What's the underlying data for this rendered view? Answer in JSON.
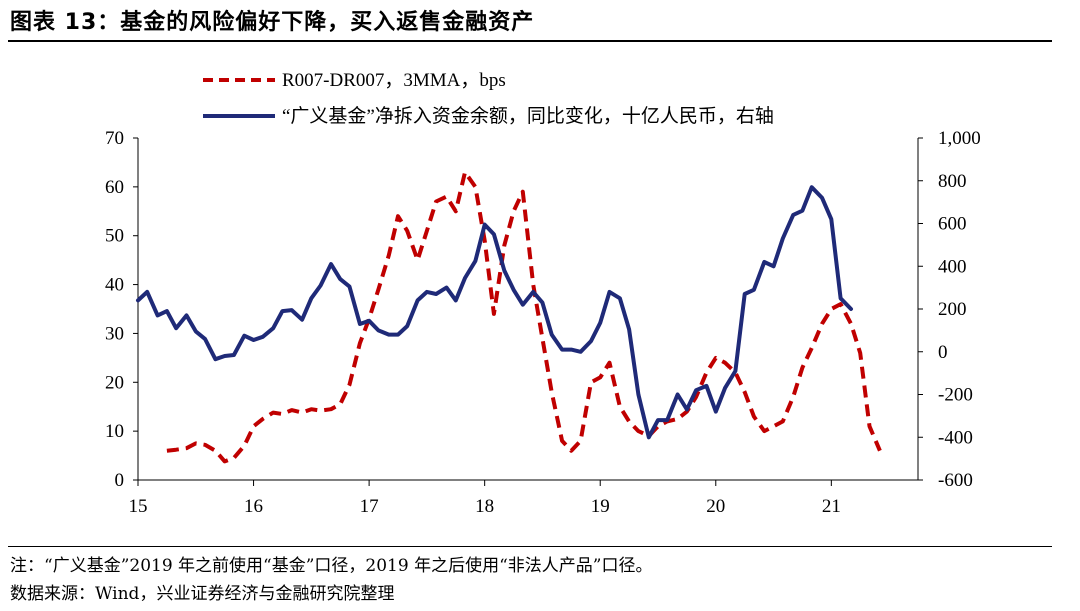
{
  "title": "图表 13：基金的风险偏好下降，买入返售金融资产",
  "footnote": "注：“广义基金”2019 年之前使用“基金”口径，2019 年之后使用“非法人产品”口径。",
  "source": "数据来源：Wind，兴业证券经济与金融研究院整理",
  "colors": {
    "red_series": "#c00000",
    "blue_series": "#1f2a78"
  },
  "chart_data": {
    "type": "line",
    "title": "",
    "x_axis": {
      "ticks": [
        "15",
        "16",
        "17",
        "18",
        "19",
        "20",
        "21"
      ],
      "range": [
        15,
        21.75
      ]
    },
    "y_left": {
      "range": [
        0,
        70
      ],
      "ticks": [
        "0",
        "10",
        "20",
        "30",
        "40",
        "50",
        "60",
        "70"
      ]
    },
    "y_right": {
      "range": [
        -600,
        1000
      ],
      "ticks": [
        "-600",
        "-400",
        "-200",
        "0",
        "200",
        "400",
        "600",
        "800",
        "1,000"
      ]
    },
    "series": [
      {
        "name": "R007-DR007，3MMA，bps",
        "axis": "left",
        "style": "dashed",
        "color": "#c00000",
        "x": [
          15.25,
          15.33,
          15.42,
          15.5,
          15.58,
          15.67,
          15.75,
          15.83,
          15.92,
          16.0,
          16.08,
          16.17,
          16.25,
          16.33,
          16.42,
          16.5,
          16.58,
          16.67,
          16.75,
          16.83,
          16.92,
          17.0,
          17.08,
          17.17,
          17.25,
          17.33,
          17.42,
          17.5,
          17.58,
          17.67,
          17.75,
          17.83,
          17.92,
          18.0,
          18.08,
          18.17,
          18.25,
          18.33,
          18.42,
          18.5,
          18.58,
          18.67,
          18.75,
          18.83,
          18.92,
          19.0,
          19.08,
          19.17,
          19.25,
          19.33,
          19.42,
          19.5,
          19.58,
          19.67,
          19.75,
          19.83,
          19.92,
          20.0,
          20.08,
          20.17,
          20.25,
          20.33,
          20.42,
          20.5,
          20.58,
          20.67,
          20.75,
          20.83,
          20.92,
          21.0,
          21.08,
          21.17,
          21.25,
          21.33,
          21.42
        ],
        "values": [
          6,
          6.2,
          6.5,
          7.5,
          7.2,
          6,
          3.8,
          4.5,
          7,
          11,
          12.5,
          13.8,
          13.5,
          14.3,
          13.8,
          14.5,
          14.2,
          14.5,
          15.5,
          19.5,
          28,
          33,
          39,
          46,
          54,
          51,
          45,
          51,
          57,
          58,
          55,
          63,
          60,
          49,
          34,
          48,
          55,
          59,
          40,
          29,
          18,
          8,
          6,
          8,
          20,
          21,
          24,
          15,
          12,
          10,
          9,
          11,
          12,
          12.5,
          14,
          17,
          22,
          25,
          24,
          22,
          18,
          13,
          10,
          11,
          12,
          17,
          23,
          27,
          32,
          35,
          36,
          32,
          26,
          11,
          6
        ],
        "points_note": "values in bps, estimated from gridlines"
      },
      {
        "name": "“广义基金”净拆入资金余额，同比变化，十亿人民币，右轴",
        "axis": "right",
        "style": "solid",
        "color": "#1f2a78",
        "x": [
          15.0,
          15.08,
          15.17,
          15.25,
          15.33,
          15.42,
          15.5,
          15.58,
          15.67,
          15.75,
          15.83,
          15.92,
          16.0,
          16.08,
          16.17,
          16.25,
          16.33,
          16.42,
          16.5,
          16.58,
          16.67,
          16.75,
          16.83,
          16.92,
          17.0,
          17.08,
          17.17,
          17.25,
          17.33,
          17.42,
          17.5,
          17.58,
          17.67,
          17.75,
          17.83,
          17.92,
          18.0,
          18.08,
          18.17,
          18.25,
          18.33,
          18.42,
          18.5,
          18.58,
          18.67,
          18.75,
          18.83,
          18.92,
          19.0,
          19.08,
          19.17,
          19.25,
          19.33,
          19.42,
          19.5,
          19.58,
          19.67,
          19.75,
          19.83,
          19.92,
          20.0,
          20.08,
          20.17,
          20.25,
          20.33,
          20.42,
          20.5,
          20.58,
          20.67,
          20.75,
          20.83,
          20.92,
          21.0,
          21.08,
          21.17
        ],
        "values": [
          240,
          280,
          170,
          190,
          110,
          170,
          95,
          60,
          -35,
          -20,
          -15,
          75,
          55,
          70,
          110,
          190,
          195,
          150,
          250,
          310,
          410,
          340,
          305,
          130,
          145,
          100,
          80,
          80,
          120,
          240,
          280,
          270,
          300,
          240,
          345,
          425,
          595,
          550,
          380,
          290,
          220,
          280,
          230,
          80,
          10,
          10,
          0,
          50,
          135,
          280,
          250,
          105,
          -200,
          -400,
          -320,
          -320,
          -200,
          -270,
          -180,
          -160,
          -280,
          -170,
          -90,
          270,
          290,
          420,
          400,
          530,
          640,
          660,
          770,
          720,
          620,
          250,
          200
        ],
        "points_note": "values in billion RMB, estimated from gridlines"
      }
    ],
    "legend_position": "top-center",
    "grid": false
  }
}
